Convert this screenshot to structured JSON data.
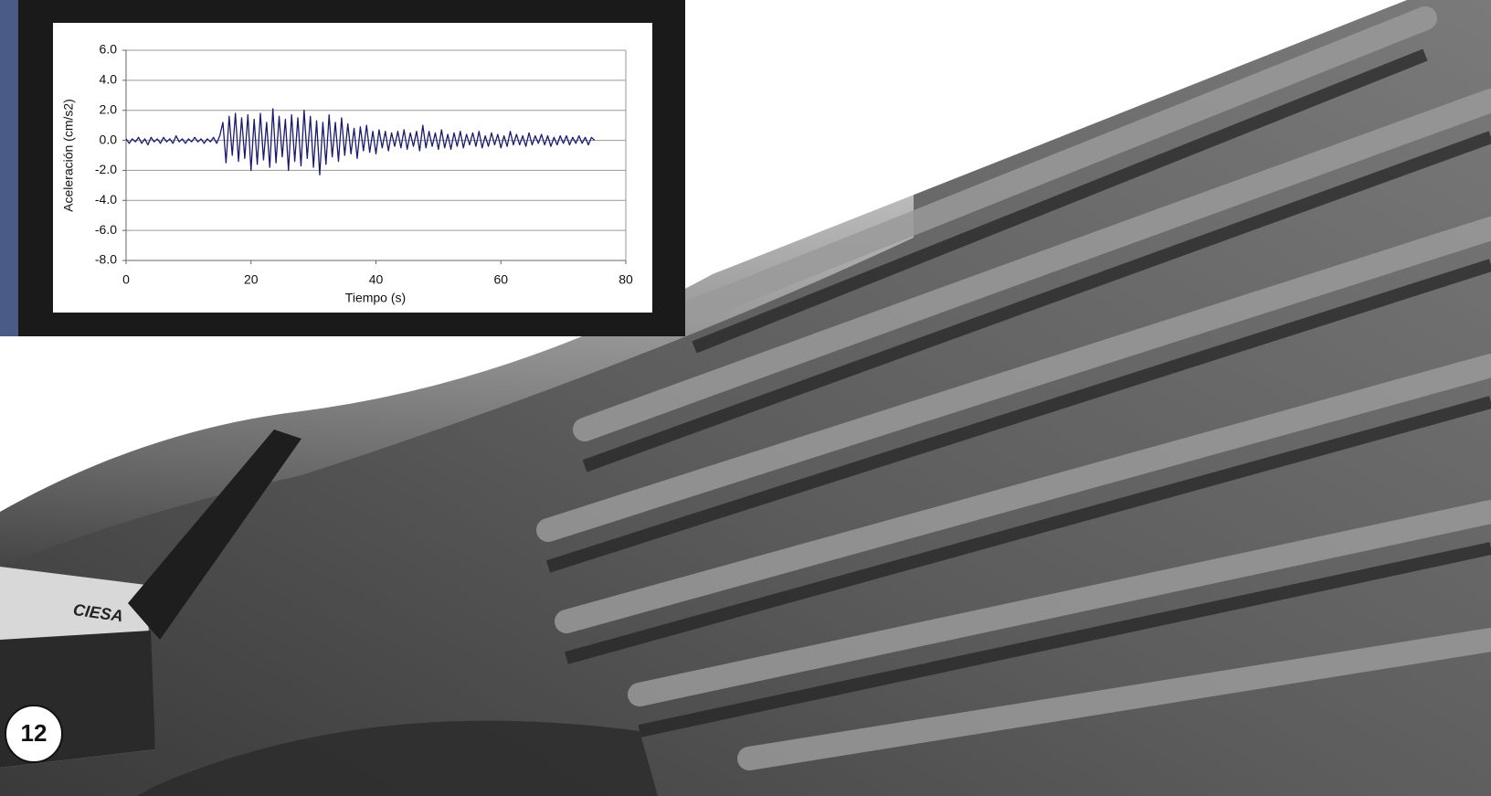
{
  "chart_data": {
    "type": "line",
    "xlabel": "Tiempo (s)",
    "ylabel": "Aceleración (cm/s2)",
    "xlim": [
      0,
      80
    ],
    "xticks": [
      0,
      20,
      40,
      60,
      80
    ],
    "ylim": [
      -8,
      6
    ],
    "yticks": [
      {
        "value": 6,
        "label": "6.0"
      },
      {
        "value": 4,
        "label": "4.0"
      },
      {
        "value": 2,
        "label": "2.0"
      },
      {
        "value": 0,
        "label": "0.0"
      },
      {
        "value": -2,
        "label": "-2.0"
      },
      {
        "value": -4,
        "label": "-4.0"
      },
      {
        "value": -6,
        "label": "-6.0"
      },
      {
        "value": -8,
        "label": "-8.0"
      }
    ],
    "grid": true,
    "x": [
      0,
      0.5,
      1,
      1.5,
      2,
      2.5,
      3,
      3.5,
      4,
      4.5,
      5,
      5.5,
      6,
      6.5,
      7,
      7.5,
      8,
      8.5,
      9,
      9.5,
      10,
      10.5,
      11,
      11.5,
      12,
      12.5,
      13,
      13.5,
      14,
      14.5,
      15,
      15.5,
      16,
      16.5,
      17,
      17.5,
      18,
      18.5,
      19,
      19.5,
      20,
      20.5,
      21,
      21.5,
      22,
      22.5,
      23,
      23.5,
      24,
      24.5,
      25,
      25.5,
      26,
      26.5,
      27,
      27.5,
      28,
      28.5,
      29,
      29.5,
      30,
      30.5,
      31,
      31.5,
      32,
      32.5,
      33,
      33.5,
      34,
      34.5,
      35,
      35.5,
      36,
      36.5,
      37,
      37.5,
      38,
      38.5,
      39,
      39.5,
      40,
      40.5,
      41,
      41.5,
      42,
      42.5,
      43,
      43.5,
      44,
      44.5,
      45,
      45.5,
      46,
      46.5,
      47,
      47.5,
      48,
      48.5,
      49,
      49.5,
      50,
      50.5,
      51,
      51.5,
      52,
      52.5,
      53,
      53.5,
      54,
      54.5,
      55,
      55.5,
      56,
      56.5,
      57,
      57.5,
      58,
      58.5,
      59,
      59.5,
      60,
      60.5,
      61,
      61.5,
      62,
      62.5,
      63,
      63.5,
      64,
      64.5,
      65,
      65.5,
      66,
      66.5,
      67,
      67.5,
      68,
      68.5,
      69,
      69.5,
      70,
      70.5,
      71,
      71.5,
      72,
      72.5,
      73,
      73.5,
      74,
      74.5,
      75
    ],
    "series": [
      {
        "color": "#1a1a6e",
        "values": [
          0.1,
          -0.2,
          0.1,
          -0.1,
          0.2,
          -0.2,
          0.1,
          -0.3,
          0.2,
          -0.1,
          0.1,
          -0.2,
          0.2,
          -0.1,
          0.1,
          -0.2,
          0.3,
          -0.1,
          0.1,
          -0.2,
          0.1,
          -0.1,
          0.2,
          -0.1,
          0.1,
          -0.2,
          0.1,
          -0.1,
          0.2,
          -0.2,
          0.3,
          1.2,
          -1.5,
          1.6,
          -1.0,
          1.8,
          -1.4,
          1.5,
          -1.2,
          1.7,
          -2.0,
          1.4,
          -1.6,
          1.8,
          -1.3,
          1.2,
          -1.8,
          2.1,
          -1.5,
          1.6,
          -1.1,
          1.4,
          -2.0,
          1.7,
          -1.4,
          1.5,
          -1.7,
          2.0,
          -1.2,
          1.6,
          -1.8,
          1.3,
          -2.3,
          1.2,
          -1.6,
          1.7,
          -1.1,
          1.2,
          -1.4,
          1.5,
          -1.0,
          1.1,
          -0.9,
          0.8,
          -1.2,
          0.9,
          -0.7,
          1.0,
          -0.8,
          0.6,
          -0.9,
          0.7,
          -0.5,
          0.6,
          -0.7,
          0.5,
          -0.4,
          0.6,
          -0.5,
          0.7,
          -0.6,
          0.5,
          -0.4,
          0.6,
          -0.7,
          1.0,
          -0.5,
          0.6,
          -0.4,
          0.5,
          -0.6,
          0.7,
          -0.5,
          0.4,
          -0.6,
          0.5,
          -0.4,
          0.6,
          -0.5,
          0.4,
          -0.3,
          0.5,
          -0.4,
          0.6,
          -0.5,
          0.3,
          -0.4,
          0.5,
          -0.3,
          0.4,
          -0.5,
          0.3,
          -0.4,
          0.6,
          -0.3,
          0.4,
          -0.3,
          0.3,
          -0.4,
          0.5,
          -0.3,
          0.3,
          -0.2,
          0.4,
          -0.3,
          0.3,
          -0.4,
          0.2,
          -0.3,
          0.3,
          -0.2,
          0.3,
          -0.3,
          0.2,
          -0.2,
          0.3,
          -0.2,
          0.2,
          -0.3,
          0.2,
          0.0
        ]
      }
    ]
  },
  "page_number": "12"
}
